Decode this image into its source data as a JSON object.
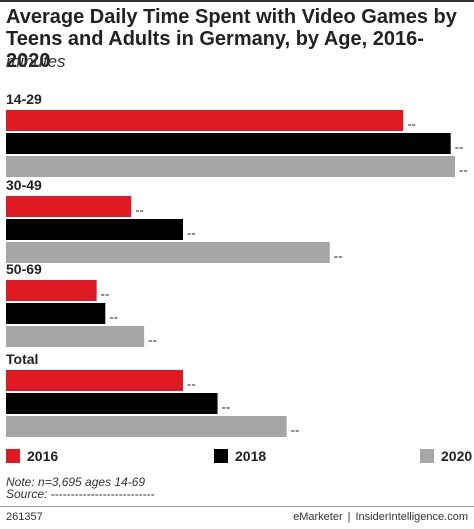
{
  "title": "Average Daily Time Spent with Video Games by Teens and Adults in Germany, by Age, 2016-2020",
  "subtitle": "minutes",
  "colors": {
    "2016": "#e01a22",
    "2018": "#000000",
    "2020": "#a6a6a6"
  },
  "chart_data": {
    "type": "bar",
    "orientation": "horizontal",
    "categories": [
      "14-29",
      "30-49",
      "50-69",
      "Total"
    ],
    "series": [
      {
        "name": "2016",
        "values": [
          92,
          29,
          21,
          41
        ]
      },
      {
        "name": "2018",
        "values": [
          103,
          41,
          23,
          49
        ]
      },
      {
        "name": "2020",
        "values": [
          104,
          75,
          32,
          65
        ]
      }
    ],
    "data_label": "--",
    "legend_position": "bottom",
    "grid": false
  },
  "legend": [
    "2016",
    "2018",
    "2020"
  ],
  "note": "Note: n=3,695 ages 14-69",
  "source": "Source: --------------------------",
  "footer": {
    "id": "261357",
    "brand_left": "eMarketer",
    "separator": "|",
    "brand_right": "InsiderIntelligence.com"
  }
}
